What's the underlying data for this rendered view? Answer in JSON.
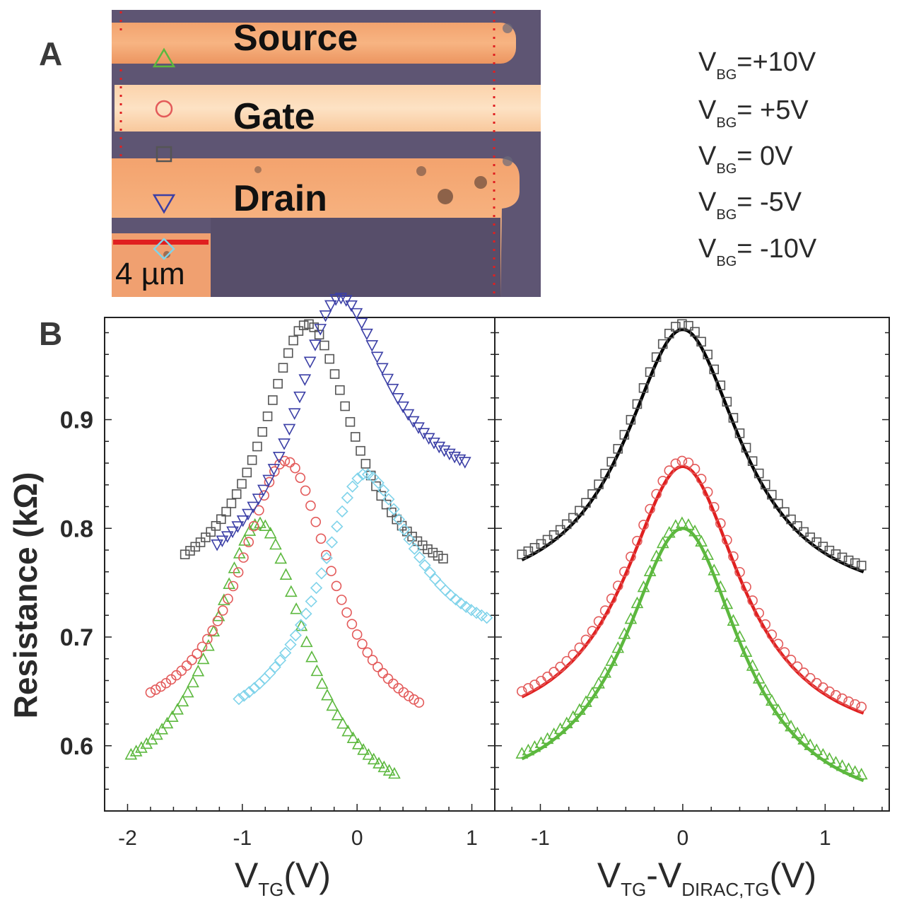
{
  "panel_labels": {
    "a": "A",
    "b": "B"
  },
  "micrograph": {
    "labels": [
      "Source",
      "Gate",
      "Drain"
    ],
    "scale_bar_label": "4 µm"
  },
  "legend": [
    {
      "prefix": "V",
      "sub": "BG",
      "value": "=+10V",
      "color": "#5cb83e",
      "marker": "triangle-up"
    },
    {
      "prefix": "V",
      "sub": "BG",
      "value": "=  +5V",
      "color": "#e35a5a",
      "marker": "circle"
    },
    {
      "prefix": "V",
      "sub": "BG",
      "value": "=    0V",
      "color": "#555555",
      "marker": "square"
    },
    {
      "prefix": "V",
      "sub": "BG",
      "value": "=   -5V",
      "color": "#3b3fa6",
      "marker": "triangle-down"
    },
    {
      "prefix": "V",
      "sub": "BG",
      "value": "= -10V",
      "color": "#7fd3ea",
      "marker": "diamond"
    }
  ],
  "chart_data": [
    {
      "type": "scatter",
      "title": "",
      "xlabel": {
        "main": "V",
        "sub": "TG",
        "suffix": "(V)"
      },
      "ylabel": "Resistance (kΩ)",
      "xlim": [
        -2.2,
        1.2
      ],
      "ylim": [
        0.54,
        0.994
      ],
      "xticks": [
        "-2",
        "-1",
        "0",
        "1"
      ],
      "xtick_values": [
        -2,
        -1,
        0,
        1
      ],
      "yticks": [
        "0.6",
        "0.7",
        "0.8",
        "0.9"
      ],
      "ytick_values": [
        0.6,
        0.7,
        0.8,
        0.9
      ],
      "series": [
        {
          "name": "V_BG=+10V",
          "marker": "triangle-up",
          "color": "#5cb83e",
          "x_start": -1.97,
          "x_end": 0.35,
          "x_step": 0.045,
          "peak_x": -0.85,
          "peak": 0.805,
          "base_left": 0.592,
          "base_right": 0.573,
          "width": 0.5
        },
        {
          "name": "V_BG=+5V",
          "marker": "circle",
          "color": "#e35a5a",
          "x_start": -1.8,
          "x_end": 0.57,
          "x_step": 0.045,
          "peak_x": -0.62,
          "peak": 0.862,
          "base_left": 0.649,
          "base_right": 0.638,
          "width": 0.5
        },
        {
          "name": "V_BG=0V",
          "marker": "square",
          "color": "#555555",
          "x_start": -1.5,
          "x_end": 0.79,
          "x_step": 0.045,
          "peak_x": -0.43,
          "peak": 0.988,
          "base_left": 0.776,
          "base_right": 0.77,
          "width": 0.5
        },
        {
          "name": "V_BG=-5V",
          "marker": "triangle-down",
          "color": "#3b3fa6",
          "x_start": -1.22,
          "x_end": 0.96,
          "x_step": 0.045,
          "peak_x": -0.15,
          "peak": 1.012,
          "base_left": 0.785,
          "base_right": 0.86,
          "width": 0.5
        },
        {
          "name": "V_BG=-10V",
          "marker": "diamond",
          "color": "#7fd3ea",
          "x_start": -1.03,
          "x_end": 1.17,
          "x_step": 0.045,
          "peak_x": 0.07,
          "peak": 0.85,
          "base_left": 0.643,
          "base_right": 0.716,
          "width": 0.5
        }
      ]
    },
    {
      "type": "scatter",
      "title": "",
      "xlabel": {
        "main": "V",
        "sub1": "TG",
        "mid": "-V",
        "sub2": "DIRAC,TG",
        "suffix": "(V)"
      },
      "xlim": [
        -1.32,
        1.45
      ],
      "ylim": [
        0.54,
        0.994
      ],
      "xticks": [
        "-1",
        "0",
        "1"
      ],
      "xtick_values": [
        -1,
        0,
        1
      ],
      "series": [
        {
          "name": "V_BG=0V",
          "marker": "square",
          "color": "#555555",
          "fit_color": "#000000",
          "x_start": -1.13,
          "x_end": 1.27,
          "x_step": 0.045,
          "peak": 0.988,
          "base_left": 0.776,
          "base_right": 0.765,
          "width": 0.5
        },
        {
          "name": "V_BG=+5V",
          "marker": "circle",
          "color": "#e35a5a",
          "fit_color": "#e02020",
          "x_start": -1.13,
          "x_end": 1.27,
          "x_step": 0.045,
          "peak": 0.862,
          "base_left": 0.65,
          "base_right": 0.635,
          "width": 0.5
        },
        {
          "name": "V_BG=+10V",
          "marker": "triangle-up",
          "color": "#5cb83e",
          "fit_color": "#5cb83e",
          "x_start": -1.13,
          "x_end": 1.27,
          "x_step": 0.045,
          "peak": 0.805,
          "base_left": 0.593,
          "base_right": 0.573,
          "width": 0.5
        }
      ]
    }
  ]
}
